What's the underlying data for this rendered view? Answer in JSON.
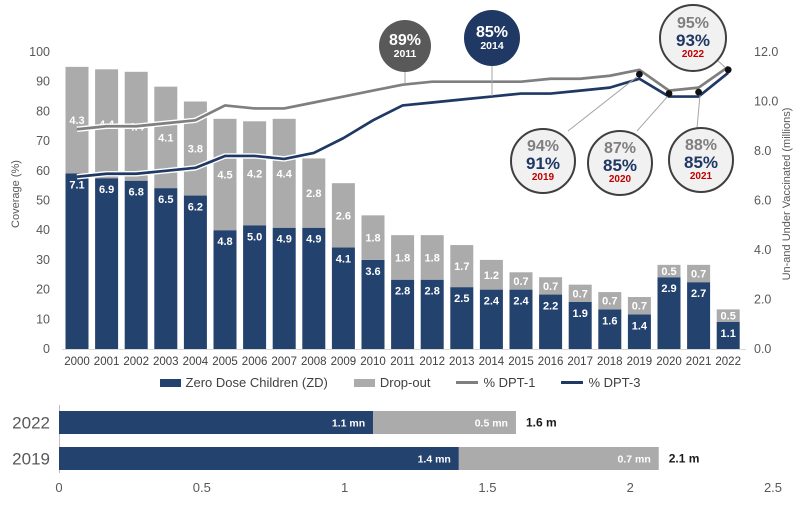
{
  "top_chart": {
    "left_axis_title": "Coverage (%)",
    "right_axis_title": "Un-and Under Vaccinated (millions)",
    "legend": {
      "zd": "Zero Dose Children (ZD)",
      "dropout": "Drop-out",
      "dpt1": "% DPT-1",
      "dpt3": "% DPT-3"
    }
  },
  "callouts": {
    "c2011": {
      "value": "89%",
      "year": "2011"
    },
    "c2014": {
      "value": "85%",
      "year": "2014"
    },
    "c2019": {
      "dpt1": "94%",
      "dpt3": "91%",
      "year": "2019"
    },
    "c2020": {
      "dpt1": "87%",
      "dpt3": "85%",
      "year": "2020"
    },
    "c2021": {
      "dpt1": "88%",
      "dpt3": "85%",
      "year": "2021"
    },
    "c2022": {
      "dpt1": "95%",
      "dpt3": "93%",
      "year": "2022"
    }
  },
  "colors": {
    "navy_bar": "#24426E",
    "navy_line": "#1F3864",
    "gray_bar": "#ABABAB",
    "gray_line": "#7F7F7F",
    "red_year": "#C00000",
    "axis_text": "#595959",
    "year_text": "#404040"
  },
  "chart_data": [
    {
      "type": "combo_stacked_bar_line",
      "title": "",
      "categories": [
        2000,
        2001,
        2002,
        2003,
        2004,
        2005,
        2006,
        2007,
        2008,
        2009,
        2010,
        2011,
        2012,
        2013,
        2014,
        2015,
        2016,
        2017,
        2018,
        2019,
        2020,
        2021,
        2022
      ],
      "series": [
        {
          "name": "Zero Dose Children (ZD)",
          "kind": "bar",
          "axis": "right",
          "values": [
            7.1,
            6.9,
            6.8,
            6.5,
            6.2,
            4.8,
            5.0,
            4.9,
            4.9,
            4.1,
            3.6,
            2.8,
            2.8,
            2.5,
            2.4,
            2.4,
            2.2,
            1.9,
            1.6,
            1.4,
            2.9,
            2.7,
            1.1
          ]
        },
        {
          "name": "Drop-out",
          "kind": "bar",
          "axis": "right",
          "values": [
            4.3,
            4.4,
            4.4,
            4.1,
            3.8,
            4.5,
            4.2,
            4.4,
            2.8,
            2.6,
            1.8,
            1.8,
            1.8,
            1.7,
            1.2,
            0.7,
            0.7,
            0.7,
            0.7,
            0.7,
            0.5,
            0.7,
            0.5
          ]
        },
        {
          "name": "% DPT-1",
          "kind": "line",
          "axis": "left",
          "values": [
            74,
            75,
            75,
            76,
            77,
            82,
            81,
            81,
            83,
            85,
            87,
            89,
            90,
            90,
            90,
            90,
            91,
            91,
            92,
            94,
            87,
            88,
            95
          ]
        },
        {
          "name": "% DPT-3",
          "kind": "line",
          "axis": "left",
          "values": [
            58,
            59,
            59,
            60,
            61,
            65,
            65,
            64,
            66,
            71,
            77,
            82,
            83,
            84,
            85,
            86,
            86,
            87,
            88,
            91,
            85,
            85,
            93
          ]
        }
      ],
      "left_axis": {
        "title": "Coverage (%)",
        "min": 0,
        "max": 100,
        "step": 10
      },
      "right_axis": {
        "title": "Un-and Under Vaccinated (millions)",
        "min": 0,
        "max": 12,
        "step": 2
      },
      "marker_years": [
        2019,
        2020,
        2021,
        2022
      ],
      "legend_position": "bottom",
      "grid": false
    },
    {
      "type": "bar",
      "orientation": "horizontal_stacked",
      "categories": [
        "2022",
        "2019"
      ],
      "series": [
        {
          "name": "Zero Dose Children (ZD)",
          "values": [
            1.1,
            1.4
          ],
          "labels": [
            "1.1 mn",
            "1.4 mn"
          ]
        },
        {
          "name": "Drop-out",
          "values": [
            0.5,
            0.7
          ],
          "labels": [
            "0.5 mn",
            "0.7 mn"
          ]
        }
      ],
      "totals": [
        "1.6 m",
        "2.1 m"
      ],
      "xlim": [
        0,
        2.5
      ],
      "ticks": [
        "0",
        "0.5",
        "1",
        "1.5",
        "2",
        "2.5"
      ],
      "grid": false
    }
  ]
}
